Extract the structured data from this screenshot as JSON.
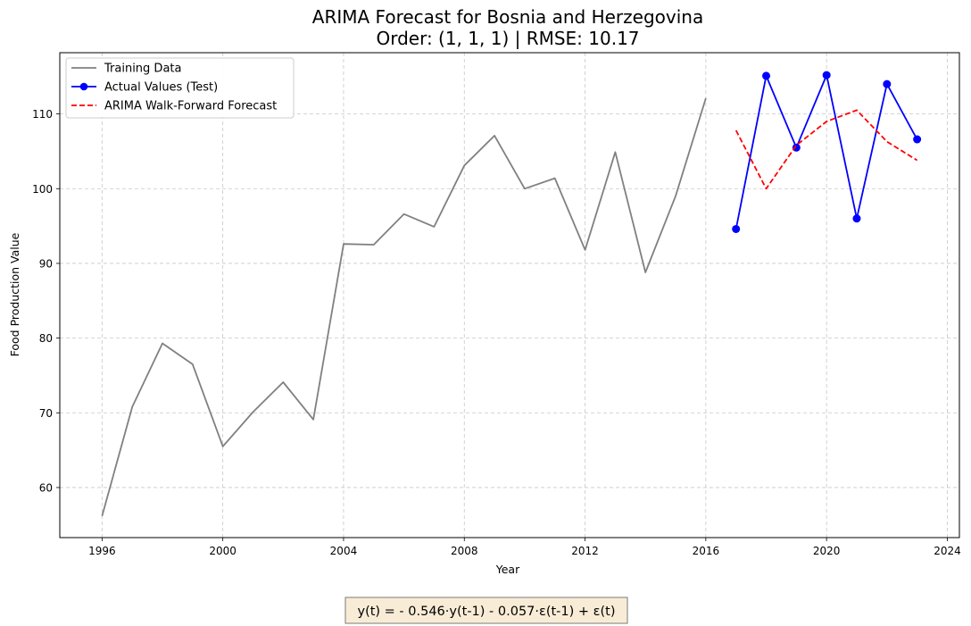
{
  "chart_data": {
    "type": "line",
    "title": "ARIMA Forecast for Bosnia and Herzegovina",
    "subtitle": "Order: (1, 1, 1) | RMSE: 10.17",
    "xlabel": "Year",
    "ylabel": "Food Production Value",
    "xlim": [
      1994.6,
      2024.4
    ],
    "ylim": [
      53.3,
      118.2
    ],
    "xticks": [
      1996,
      2000,
      2004,
      2008,
      2012,
      2016,
      2020,
      2024
    ],
    "yticks": [
      60,
      70,
      80,
      90,
      100,
      110
    ],
    "grid": true,
    "legend_position": "top-left",
    "series": [
      {
        "name": "Training Data",
        "color": "#808080",
        "style": "solid",
        "markers": false,
        "x": [
          1996,
          1997,
          1998,
          1999,
          2000,
          2001,
          2002,
          2003,
          2004,
          2005,
          2006,
          2007,
          2008,
          2009,
          2010,
          2011,
          2012,
          2013,
          2014,
          2015,
          2016
        ],
        "y": [
          56.2,
          70.8,
          79.3,
          76.5,
          65.5,
          70.1,
          74.1,
          69.1,
          92.6,
          92.5,
          96.6,
          94.9,
          103.1,
          107.1,
          100.0,
          101.4,
          91.8,
          104.9,
          88.8,
          99.0,
          112.1
        ]
      },
      {
        "name": "Actual Values (Test)",
        "color": "#0000ff",
        "style": "solid",
        "markers": true,
        "x": [
          2017,
          2018,
          2019,
          2020,
          2021,
          2022,
          2023
        ],
        "y": [
          94.6,
          115.1,
          105.5,
          115.2,
          96.0,
          114.0,
          106.6
        ]
      },
      {
        "name": "ARIMA Walk-Forward Forecast",
        "color": "#ff0000",
        "style": "dashed",
        "markers": false,
        "x": [
          2017,
          2018,
          2019,
          2020,
          2021,
          2022,
          2023
        ],
        "y": [
          107.8,
          100.0,
          105.8,
          109.0,
          110.5,
          106.3,
          103.8
        ]
      }
    ]
  },
  "formula": "y(t) = - 0.546·y(t-1) - 0.057·ε(t-1) + ε(t)"
}
